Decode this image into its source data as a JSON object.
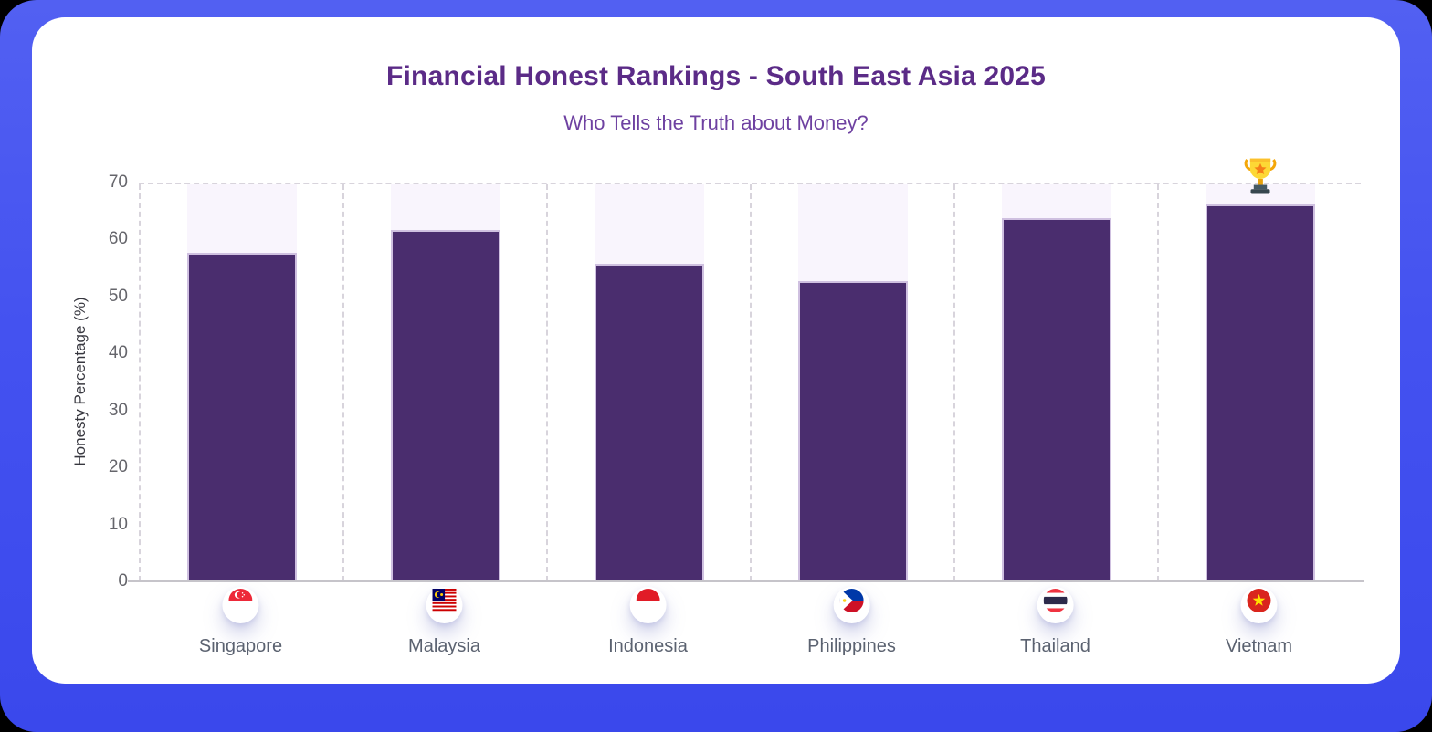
{
  "frame": {
    "background_color": "#4452f0",
    "card_color": "#ffffff"
  },
  "chart_data": {
    "type": "bar",
    "title": "Financial Honest Rankings - South East Asia 2025",
    "subtitle": "Who Tells the Truth about Money?",
    "ylabel": "Honesty Percentage (%)",
    "xlabel": "",
    "ylim": [
      0,
      70
    ],
    "yticks": [
      0,
      10,
      20,
      30,
      40,
      50,
      60,
      70
    ],
    "grid": "dashed top line at 70 and dashed vertical column separators",
    "legend": "none",
    "categories": [
      "Singapore",
      "Malaysia",
      "Indonesia",
      "Philippines",
      "Thailand",
      "Vietnam"
    ],
    "values": [
      58,
      62,
      56,
      53,
      64,
      66.5
    ],
    "flag_icons": [
      "sg-flag-icon",
      "my-flag-icon",
      "id-flag-icon",
      "ph-flag-icon",
      "th-flag-icon",
      "vn-flag-icon"
    ],
    "winner": {
      "category": "Vietnam",
      "marker": "trophy-icon"
    },
    "bar_color": "#4a2d6e",
    "track_color": "#f9f5fd"
  }
}
